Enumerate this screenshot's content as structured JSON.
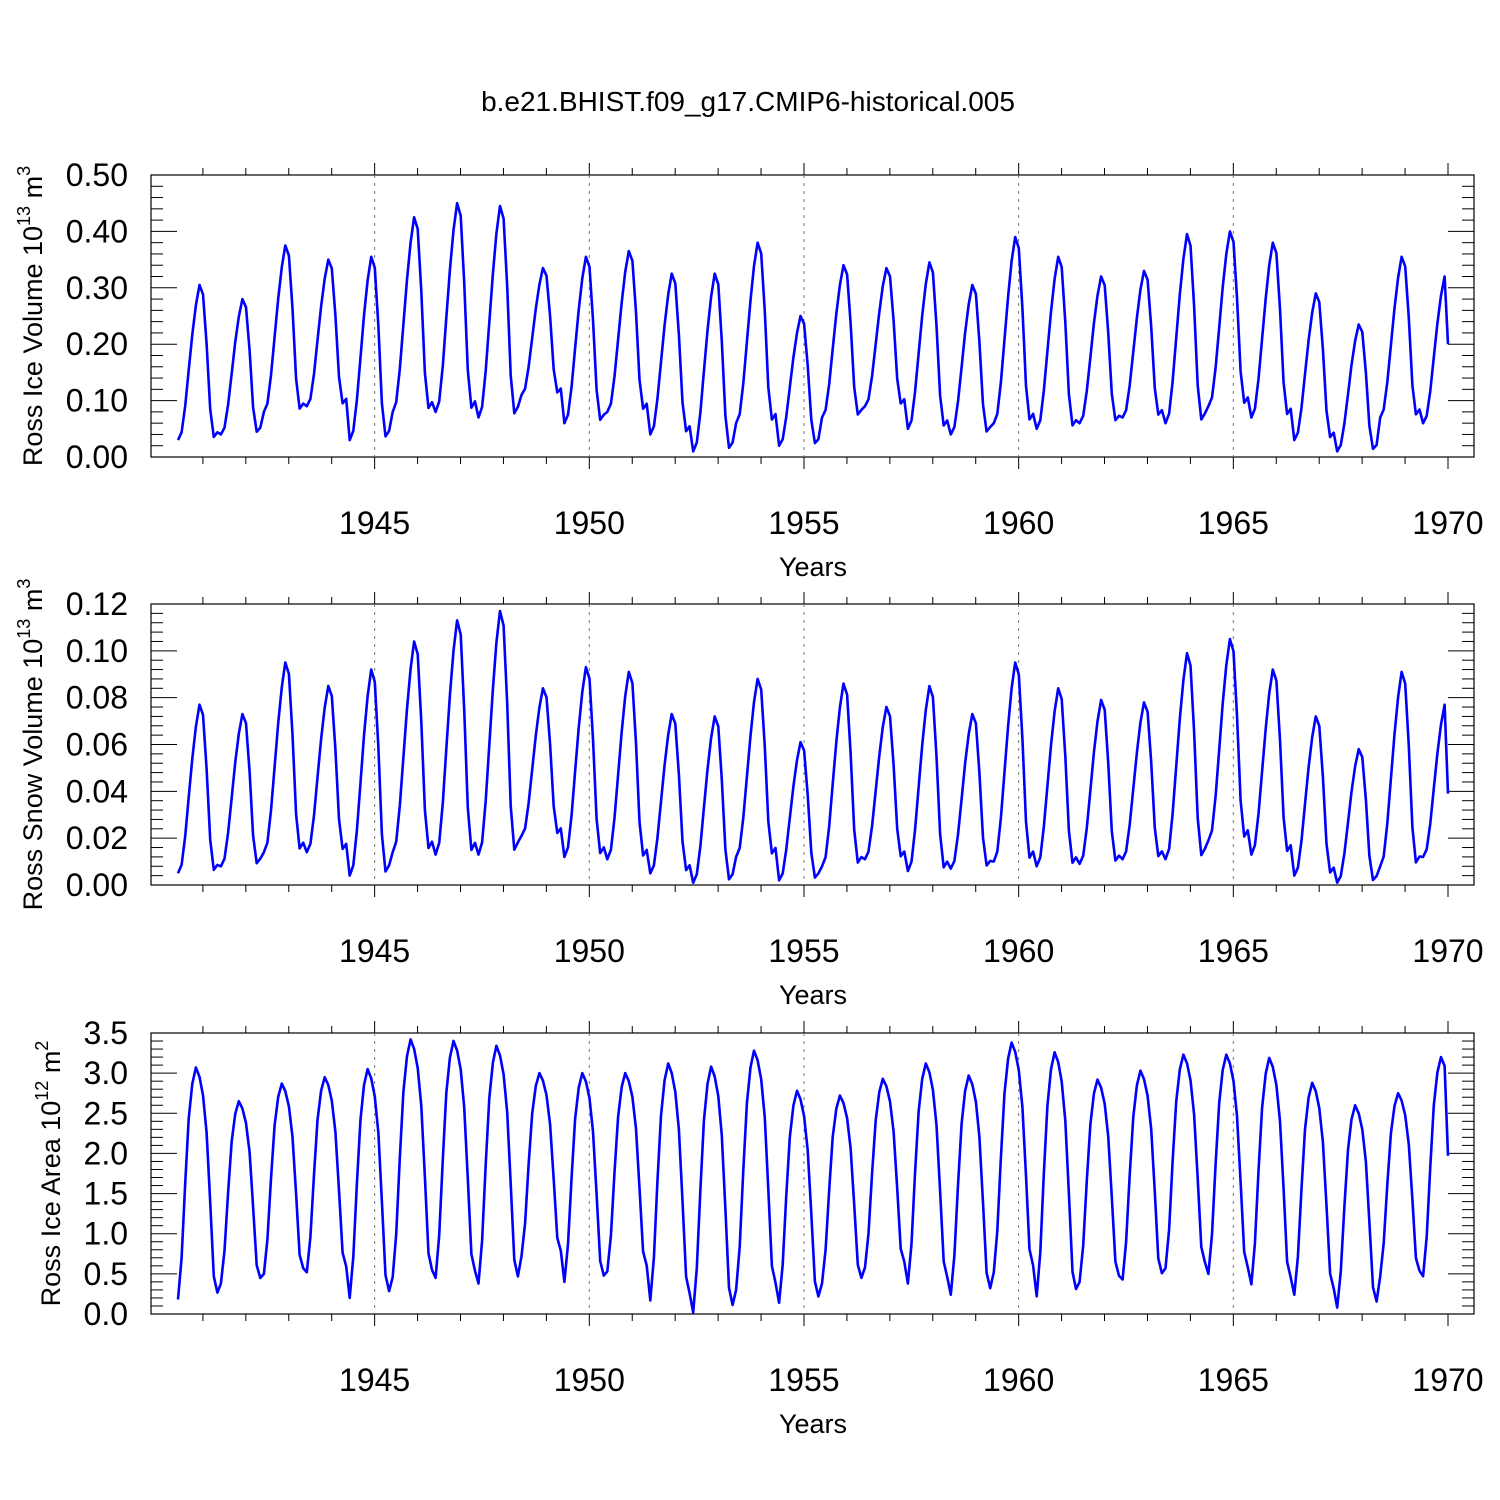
{
  "figure_title": "b.e21.BHIST.f09_g17.CMIP6-historical.005",
  "line_color": "#0000ff",
  "chart_data": [
    {
      "type": "line",
      "panel": "ross-ice-volume",
      "ylabel_main": "Ross Ice Volume 10",
      "ylabel_exp": "13",
      "ylabel_unit": " m",
      "ylabel_unit_exp": "3",
      "xlabel": "Years",
      "xlim": [
        1940.42,
        1970.0
      ],
      "ylim": [
        0.0,
        0.5
      ],
      "yticks": [
        0.0,
        0.1,
        0.2,
        0.3,
        0.4,
        0.5
      ],
      "ytick_labels": [
        "0.00",
        "0.10",
        "0.20",
        "0.30",
        "0.40",
        "0.50"
      ],
      "xticks": [
        1945,
        1950,
        1955,
        1960,
        1965,
        1970
      ],
      "xtick_labels": [
        "1945",
        "1950",
        "1955",
        "1960",
        "1965",
        "1970"
      ],
      "vlines": [
        1945,
        1950,
        1955,
        1960,
        1965
      ],
      "cycle": {
        "start_year": 1940.42,
        "months_first_year": 7,
        "shape": [
          0.0,
          0.05,
          0.22,
          0.45,
          0.68,
          0.87,
          1.0,
          0.94,
          0.62,
          0.2,
          0.02,
          0.05
        ]
      },
      "minima": [
        0.03,
        0.04,
        0.08,
        0.09,
        0.03,
        0.08,
        0.08,
        0.07,
        0.11,
        0.06,
        0.08,
        0.04,
        0.01,
        0.06,
        0.02,
        0.07,
        0.09,
        0.05,
        0.04,
        0.06,
        0.05,
        0.06,
        0.07,
        0.06,
        0.09,
        0.07,
        0.03,
        0.01,
        0.07,
        0.06
      ],
      "maxima": [
        0.305,
        0.28,
        0.375,
        0.35,
        0.355,
        0.425,
        0.45,
        0.445,
        0.335,
        0.355,
        0.365,
        0.325,
        0.325,
        0.38,
        0.25,
        0.34,
        0.335,
        0.345,
        0.305,
        0.39,
        0.355,
        0.32,
        0.33,
        0.395,
        0.4,
        0.38,
        0.29,
        0.235,
        0.355,
        0.32
      ],
      "end_value": 0.2
    },
    {
      "type": "line",
      "panel": "ross-snow-volume",
      "ylabel_main": "Ross Snow Volume 10",
      "ylabel_exp": "13",
      "ylabel_unit": " m",
      "ylabel_unit_exp": "3",
      "xlabel": "Years",
      "xlim": [
        1940.42,
        1970.0
      ],
      "ylim": [
        0.0,
        0.12
      ],
      "yticks": [
        0.0,
        0.02,
        0.04,
        0.06,
        0.08,
        0.1,
        0.12
      ],
      "ytick_labels": [
        "0.00",
        "0.02",
        "0.04",
        "0.06",
        "0.08",
        "0.10",
        "0.12"
      ],
      "xticks": [
        1945,
        1950,
        1955,
        1960,
        1965,
        1970
      ],
      "xtick_labels": [
        "1945",
        "1950",
        "1955",
        "1960",
        "1965",
        "1970"
      ],
      "vlines": [
        1945,
        1950,
        1955,
        1960,
        1965
      ],
      "cycle": {
        "start_year": 1940.42,
        "months_first_year": 7,
        "shape": [
          0.0,
          0.05,
          0.22,
          0.45,
          0.68,
          0.87,
          1.0,
          0.94,
          0.62,
          0.2,
          0.02,
          0.05
        ]
      },
      "minima": [
        0.005,
        0.008,
        0.014,
        0.014,
        0.004,
        0.014,
        0.013,
        0.013,
        0.021,
        0.012,
        0.011,
        0.005,
        0.001,
        0.012,
        0.002,
        0.008,
        0.011,
        0.006,
        0.007,
        0.01,
        0.008,
        0.009,
        0.011,
        0.011,
        0.019,
        0.013,
        0.004,
        0.001,
        0.008,
        0.012
      ],
      "maxima": [
        0.077,
        0.073,
        0.095,
        0.085,
        0.092,
        0.104,
        0.113,
        0.117,
        0.084,
        0.093,
        0.091,
        0.073,
        0.072,
        0.088,
        0.061,
        0.086,
        0.076,
        0.085,
        0.073,
        0.095,
        0.084,
        0.079,
        0.078,
        0.099,
        0.105,
        0.092,
        0.072,
        0.058,
        0.091,
        0.077
      ],
      "end_value": 0.039
    },
    {
      "type": "line",
      "panel": "ross-ice-area",
      "ylabel_main": "Ross Ice Area 10",
      "ylabel_exp": "12",
      "ylabel_unit": " m",
      "ylabel_unit_exp": "2",
      "xlabel": "Years",
      "xlim": [
        1940.42,
        1970.0
      ],
      "ylim": [
        0.0,
        3.5
      ],
      "yticks": [
        0.0,
        0.5,
        1.0,
        1.5,
        2.0,
        2.5,
        3.0,
        3.5
      ],
      "ytick_labels": [
        "0.0",
        "0.5",
        "1.0",
        "1.5",
        "2.0",
        "2.5",
        "3.0",
        "3.5"
      ],
      "xticks": [
        1945,
        1950,
        1955,
        1960,
        1965,
        1970
      ],
      "xtick_labels": [
        "1945",
        "1950",
        "1955",
        "1960",
        "1965",
        "1970"
      ],
      "vlines": [
        1945,
        1950,
        1955,
        1960,
        1965
      ],
      "cycle": {
        "start_year": 1940.42,
        "months_first_year": 7,
        "shape": [
          0.0,
          0.18,
          0.5,
          0.78,
          0.93,
          1.0,
          0.96,
          0.88,
          0.72,
          0.42,
          0.1,
          0.03
        ]
      },
      "minima": [
        0.18,
        0.38,
        0.5,
        0.52,
        0.2,
        0.46,
        0.45,
        0.38,
        0.72,
        0.4,
        0.53,
        0.17,
        0.02,
        0.3,
        0.14,
        0.38,
        0.58,
        0.38,
        0.24,
        0.52,
        0.22,
        0.4,
        0.43,
        0.57,
        0.5,
        0.37,
        0.24,
        0.08,
        0.47,
        0.47
      ],
      "maxima": [
        3.07,
        2.65,
        2.87,
        2.95,
        3.05,
        3.42,
        3.4,
        3.34,
        3.0,
        3.0,
        3.0,
        3.12,
        3.08,
        3.28,
        2.78,
        2.72,
        2.93,
        3.12,
        2.97,
        3.38,
        3.26,
        2.92,
        3.03,
        3.23,
        3.23,
        3.19,
        2.88,
        2.6,
        2.75,
        3.2
      ],
      "end_value": 1.97
    }
  ]
}
